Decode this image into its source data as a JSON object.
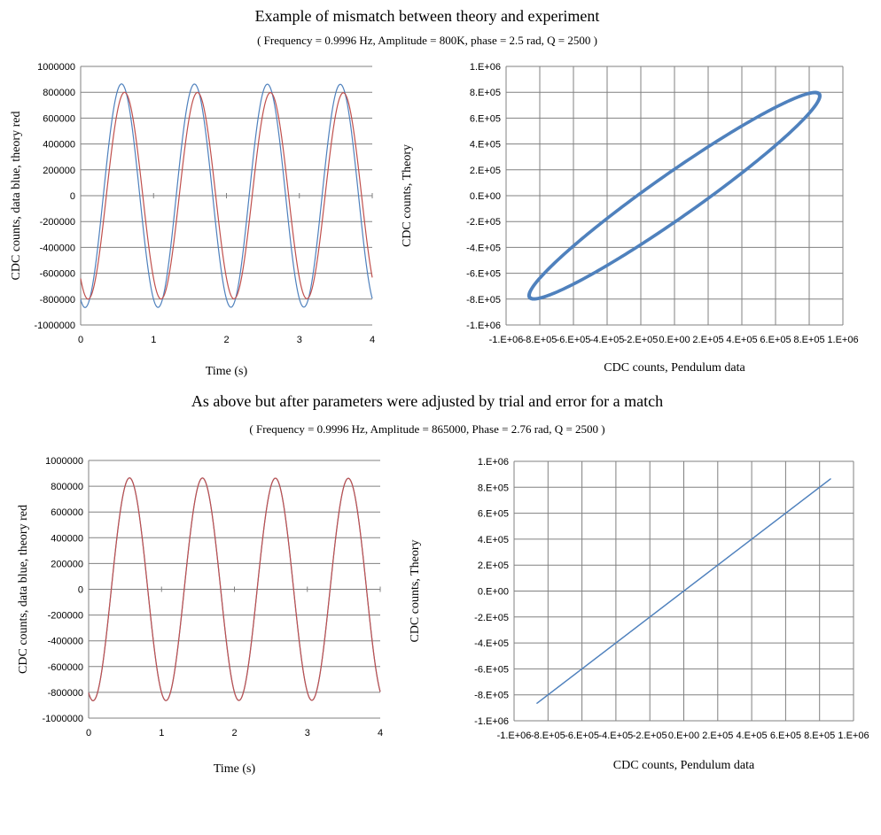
{
  "page": {
    "title_top": "Example of mismatch between theory and experiment",
    "subtitle_top": "( Frequency = 0.9996 Hz, Amplitude = 800K, phase = 2.5 rad, Q = 2500 )",
    "title_bottom": "As above but after parameters were adjusted by trial and error for a match",
    "subtitle_bottom": "( Frequency = 0.9996 Hz, Amplitude = 865000, Phase = 2.76 rad, Q = 2500 )"
  },
  "colors": {
    "data": "#4f81bd",
    "theory": "#c0504d",
    "grid": "#808080"
  },
  "chart_data": [
    {
      "id": "top-left",
      "type": "line",
      "xlabel": "Time  (s)",
      "ylabel": "CDC counts, data blue, theory red",
      "xlim": [
        0,
        4
      ],
      "ylim": [
        -1000000,
        1000000
      ],
      "xticks": [
        "0",
        "1",
        "2",
        "3",
        "4"
      ],
      "yticks": [
        "1000000",
        "800000",
        "600000",
        "400000",
        "200000",
        "0",
        "-200000",
        "-400000",
        "-600000",
        "-800000",
        "-1000000"
      ],
      "grid": "horizontal",
      "series": [
        {
          "role": "data",
          "frequency": 0.9996,
          "amplitude": 865000,
          "phase": 2.76,
          "q": 2500
        },
        {
          "role": "theory",
          "frequency": 0.9996,
          "amplitude": 800000,
          "phase": 2.5,
          "q": 2500
        }
      ]
    },
    {
      "id": "top-right",
      "type": "scatter",
      "xlabel": "CDC counts, Pendulum data",
      "ylabel": "CDC counts, Theory",
      "xlim": [
        -1000000,
        1000000
      ],
      "ylim": [
        -1000000,
        1000000
      ],
      "xticks": [
        "-1.E+06",
        "-8.E+05",
        "-6.E+05",
        "-4.E+05",
        "-2.E+05",
        "0.E+00",
        "2.E+05",
        "4.E+05",
        "6.E+05",
        "8.E+05",
        "1.E+06"
      ],
      "yticks": [
        "1.E+06",
        "8.E+05",
        "6.E+05",
        "4.E+05",
        "2.E+05",
        "0.E+00",
        "-2.E+05",
        "-4.E+05",
        "-6.E+05",
        "-8.E+05",
        "-1.E+06"
      ],
      "grid": "both",
      "x_source": {
        "amplitude": 865000,
        "phase": 2.76
      },
      "y_source": {
        "amplitude": 800000,
        "phase": 2.5
      }
    },
    {
      "id": "bottom-left",
      "type": "line",
      "xlabel": "Time  (s)",
      "ylabel": "CDC counts, data blue, theory red",
      "xlim": [
        0,
        4
      ],
      "ylim": [
        -1000000,
        1000000
      ],
      "xticks": [
        "0",
        "1",
        "2",
        "3",
        "4"
      ],
      "yticks": [
        "1000000",
        "800000",
        "600000",
        "400000",
        "200000",
        "0",
        "-200000",
        "-400000",
        "-600000",
        "-800000",
        "-1000000"
      ],
      "grid": "horizontal",
      "series": [
        {
          "role": "data",
          "frequency": 0.9996,
          "amplitude": 865000,
          "phase": 2.76,
          "q": 2500
        },
        {
          "role": "theory",
          "frequency": 0.9996,
          "amplitude": 865000,
          "phase": 2.76,
          "q": 2500
        }
      ]
    },
    {
      "id": "bottom-right",
      "type": "scatter",
      "xlabel": "CDC counts, Pendulum data",
      "ylabel": "CDC counts, Theory",
      "xlim": [
        -1000000,
        1000000
      ],
      "ylim": [
        -1000000,
        1000000
      ],
      "xticks": [
        "-1.E+06",
        "-8.E+05",
        "-6.E+05",
        "-4.E+05",
        "-2.E+05",
        "0.E+00",
        "2.E+05",
        "4.E+05",
        "6.E+05",
        "8.E+05",
        "1.E+06"
      ],
      "yticks": [
        "1.E+06",
        "8.E+05",
        "6.E+05",
        "4.E+05",
        "2.E+05",
        "0.E+00",
        "-2.E+05",
        "-4.E+05",
        "-6.E+05",
        "-8.E+05",
        "-1.E+06"
      ],
      "grid": "both",
      "x_source": {
        "amplitude": 865000,
        "phase": 2.76
      },
      "y_source": {
        "amplitude": 865000,
        "phase": 2.76
      }
    }
  ]
}
